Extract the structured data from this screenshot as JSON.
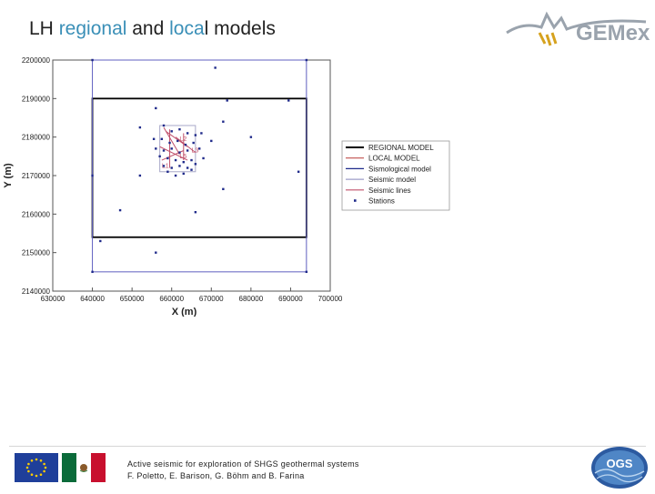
{
  "slide": {
    "title_parts": [
      "LH ",
      "regional",
      " and ",
      "loca",
      "l models"
    ],
    "accent_color": "#3a8fb7"
  },
  "logos": {
    "gemex": "GEMex",
    "ogs": "OGS"
  },
  "footer": {
    "line1": "Active seismic for exploration of SHGS geothermal systems",
    "line2": "F. Poletto, E. Barison, G. Böhm and B. Farina"
  },
  "chart_data": {
    "type": "scatter",
    "xlabel": "X (m)",
    "ylabel": "Y (m)",
    "xlim": [
      630000,
      700000
    ],
    "ylim": [
      2140000,
      2200000
    ],
    "x_ticks": [
      630000,
      640000,
      650000,
      660000,
      670000,
      680000,
      690000,
      700000
    ],
    "y_ticks": [
      2140000,
      2150000,
      2160000,
      2170000,
      2180000,
      2190000,
      2200000
    ],
    "grid": false,
    "legend_position": "right",
    "legend": [
      {
        "label": "REGIONAL MODEL",
        "color": "#000000",
        "kind": "line"
      },
      {
        "label": "LOCAL MODEL",
        "color": "#c0504d",
        "kind": "line"
      },
      {
        "label": "Sismological model",
        "color": "#1f2a8a",
        "kind": "line"
      },
      {
        "label": "Seismic model",
        "color": "#9e9ec8",
        "kind": "line"
      },
      {
        "label": "Seismic lines",
        "color": "#c0506a",
        "kind": "line"
      },
      {
        "label": "Stations",
        "color": "#1f2a8a",
        "kind": "point"
      }
    ],
    "regions": [
      {
        "name": "REGIONAL MODEL",
        "x": [
          640000,
          694000
        ],
        "y": [
          2154000,
          2190000
        ],
        "color": "#000000"
      },
      {
        "name": "Sismological model",
        "x": [
          640000,
          694000
        ],
        "y": [
          2145000,
          2200000
        ],
        "color": "#6060c0"
      },
      {
        "name": "Seismic model",
        "x": [
          657000,
          666000
        ],
        "y": [
          2171000,
          2183000
        ],
        "color": "#a8a8c8"
      }
    ],
    "seismic_lines": {
      "color": "#c0506a",
      "labels": [
        {
          "text": "L2",
          "x": 662000,
          "y": 2179000
        },
        {
          "text": "L3",
          "x": 665000,
          "y": 2176000
        },
        {
          "text": "L5",
          "x": 662000,
          "y": 2174500
        },
        {
          "text": "L1",
          "x": 657500,
          "y": 2172000
        }
      ],
      "lines": [
        [
          [
            658500,
            2181500
          ],
          [
            664000,
            2177500
          ]
        ],
        [
          [
            659500,
            2182000
          ],
          [
            659500,
            2172000
          ]
        ],
        [
          [
            657500,
            2174000
          ],
          [
            663000,
            2176500
          ]
        ],
        [
          [
            661000,
            2180000
          ],
          [
            666000,
            2176000
          ]
        ],
        [
          [
            657000,
            2177500
          ],
          [
            664000,
            2174000
          ]
        ],
        [
          [
            658000,
            2182500
          ],
          [
            662000,
            2175500
          ]
        ],
        [
          [
            663000,
            2181000
          ],
          [
            663000,
            2174000
          ]
        ]
      ]
    },
    "stations": [
      [
        640000,
        2200000
      ],
      [
        671000,
        2198000
      ],
      [
        694000,
        2200000
      ],
      [
        674000,
        2189500
      ],
      [
        689500,
        2189500
      ],
      [
        656000,
        2187500
      ],
      [
        673000,
        2184000
      ],
      [
        652000,
        2182500
      ],
      [
        680000,
        2180000
      ],
      [
        670000,
        2179000
      ],
      [
        692000,
        2171000
      ],
      [
        640000,
        2170000
      ],
      [
        652000,
        2170000
      ],
      [
        673000,
        2166500
      ],
      [
        647000,
        2161000
      ],
      [
        666000,
        2160500
      ],
      [
        642000,
        2153000
      ],
      [
        656000,
        2150000
      ],
      [
        640000,
        2145000
      ],
      [
        694000,
        2145000
      ],
      [
        658000,
        2183000
      ],
      [
        660000,
        2181500
      ],
      [
        662000,
        2182000
      ],
      [
        664000,
        2181000
      ],
      [
        666000,
        2180500
      ],
      [
        657500,
        2179500
      ],
      [
        659500,
        2178500
      ],
      [
        661500,
        2179000
      ],
      [
        663500,
        2178000
      ],
      [
        665500,
        2178500
      ],
      [
        656000,
        2177000
      ],
      [
        658000,
        2176500
      ],
      [
        660000,
        2177000
      ],
      [
        662000,
        2176000
      ],
      [
        664000,
        2176500
      ],
      [
        667000,
        2177000
      ],
      [
        657000,
        2175000
      ],
      [
        659000,
        2174500
      ],
      [
        661000,
        2174000
      ],
      [
        663000,
        2173500
      ],
      [
        665000,
        2174000
      ],
      [
        658000,
        2172500
      ],
      [
        660000,
        2172000
      ],
      [
        662000,
        2172500
      ],
      [
        664000,
        2172000
      ],
      [
        666000,
        2173000
      ],
      [
        659000,
        2171000
      ],
      [
        663000,
        2170500
      ],
      [
        665000,
        2171500
      ],
      [
        661000,
        2170000
      ],
      [
        668000,
        2174500
      ],
      [
        655500,
        2179500
      ],
      [
        667500,
        2181000
      ]
    ]
  }
}
